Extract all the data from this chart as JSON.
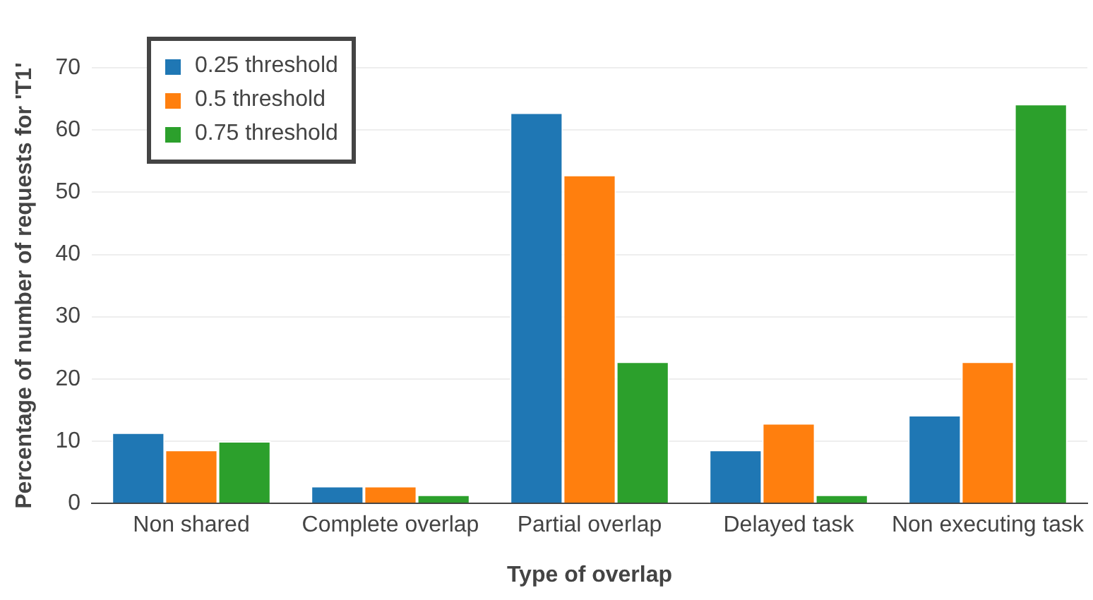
{
  "chart_data": {
    "type": "bar",
    "xlabel": "Type of overlap",
    "ylabel": "Percentage of number of requests for 'T1'",
    "categories": [
      "Non shared",
      "Complete overlap",
      "Partial overlap",
      "Delayed task",
      "Non executing task"
    ],
    "series": [
      {
        "name": "0.25 threshold",
        "color": "#1f77b4",
        "values": [
          11.4,
          2.8,
          62.8,
          8.6,
          14.2
        ]
      },
      {
        "name": "0.5 threshold",
        "color": "#ff7f0e",
        "values": [
          8.6,
          2.8,
          52.8,
          12.9,
          22.8
        ]
      },
      {
        "name": "0.75 threshold",
        "color": "#2ca02c",
        "values": [
          10.0,
          1.4,
          22.8,
          1.4,
          64.2
        ]
      }
    ],
    "ylim": [
      0,
      70
    ],
    "yticks": [
      0,
      10,
      20,
      30,
      40,
      50,
      60,
      70
    ],
    "grid": "y",
    "legend": "top left"
  }
}
